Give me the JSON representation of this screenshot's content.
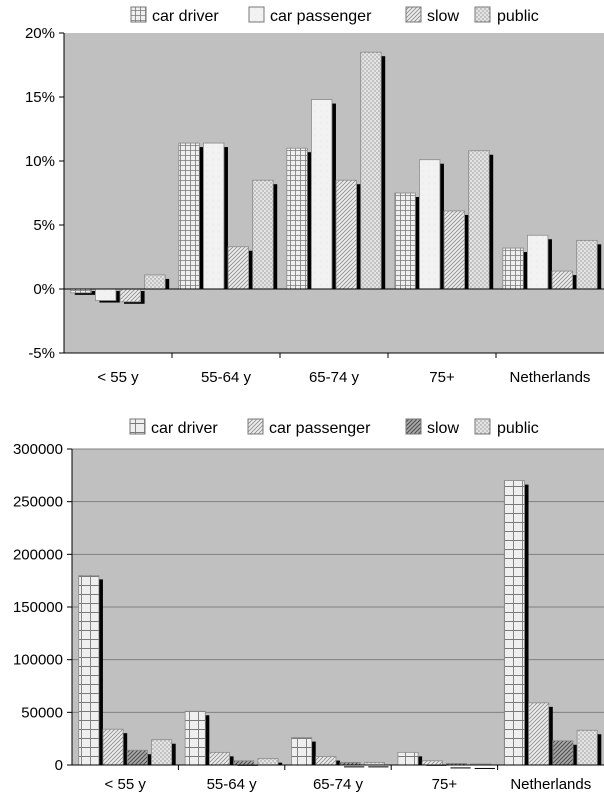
{
  "chart_data": [
    {
      "type": "bar",
      "categories": [
        "< 55 y",
        "55-64 y",
        "65-74 y",
        "75+",
        "Netherlands"
      ],
      "series": [
        {
          "name": "car driver",
          "values": [
            -0.3,
            11.4,
            11.0,
            7.5,
            3.2
          ]
        },
        {
          "name": "car passenger",
          "values": [
            -0.9,
            11.4,
            14.8,
            10.1,
            4.2
          ]
        },
        {
          "name": "slow",
          "values": [
            -1.0,
            3.3,
            8.5,
            6.1,
            1.4
          ]
        },
        {
          "name": "public",
          "values": [
            1.1,
            8.5,
            18.5,
            10.8,
            3.8
          ]
        }
      ],
      "ylim": [
        -5,
        20
      ],
      "yticks": [
        "-5%",
        "0%",
        "5%",
        "10%",
        "15%",
        "20%"
      ],
      "title": "",
      "xlabel": "",
      "ylabel": "",
      "legend": "top",
      "grid": false
    },
    {
      "type": "bar",
      "categories": [
        "< 55 y",
        "55-64 y",
        "65-74 y",
        "75+",
        "Netherlands"
      ],
      "series": [
        {
          "name": "car driver",
          "values": [
            180000,
            51000,
            26000,
            12000,
            270000
          ]
        },
        {
          "name": "car passenger",
          "values": [
            34000,
            12000,
            8000,
            4000,
            59000
          ]
        },
        {
          "name": "slow",
          "values": [
            14000,
            4000,
            2500,
            1500,
            23000
          ]
        },
        {
          "name": "public",
          "values": [
            24000,
            6000,
            2500,
            1000,
            33000
          ]
        }
      ],
      "ylim": [
        0,
        300000
      ],
      "yticks": [
        "0",
        "50000",
        "100000",
        "150000",
        "200000",
        "250000",
        "300000"
      ],
      "title": "",
      "xlabel": "",
      "ylabel": "",
      "legend": "top",
      "grid": true
    }
  ],
  "colors": {
    "plot_background": "#c0c0c0",
    "bar_fill": "#efefef",
    "slow_fill": "#9e9e9e",
    "shadow": "#000000",
    "grid": "#808080"
  }
}
